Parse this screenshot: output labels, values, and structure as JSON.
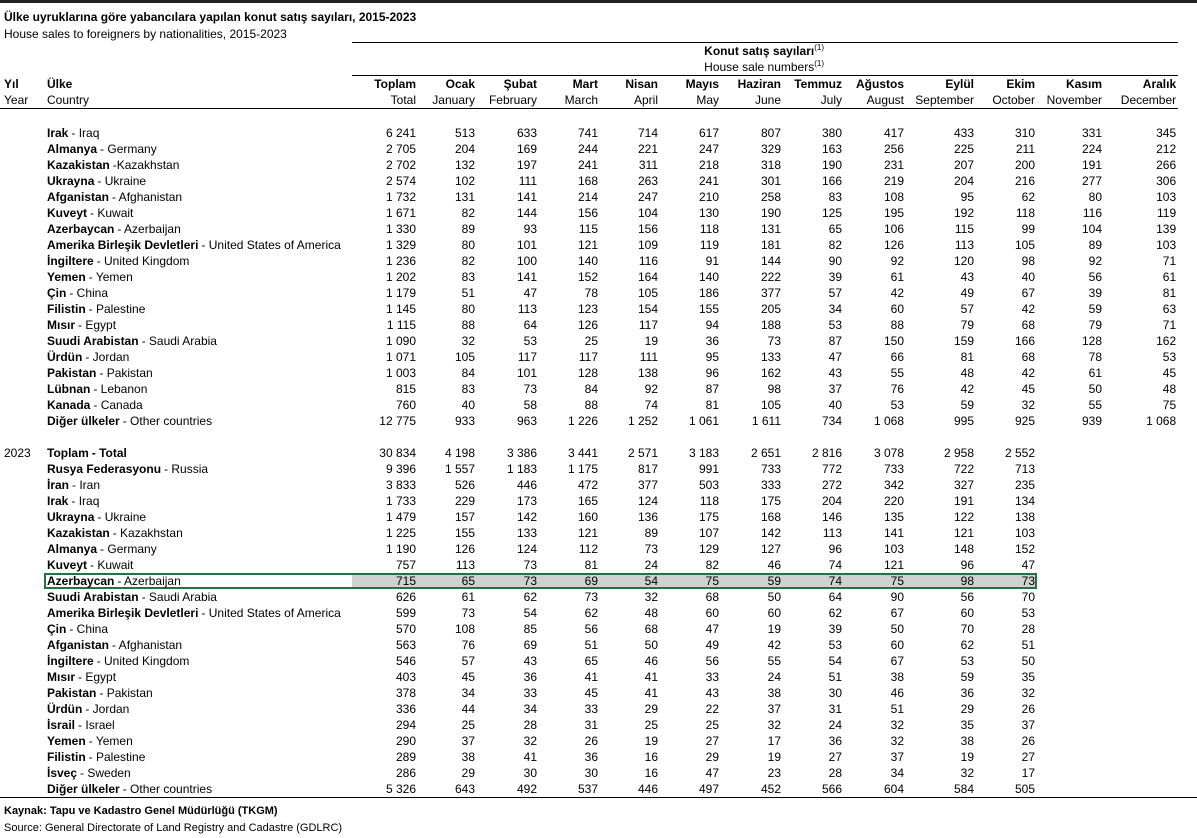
{
  "header": {
    "title": "Ülke uyruklarına göre yabancılara yapılan konut satış sayıları, 2015-2023",
    "subtitle": "House sales to foreigners by nationalities, 2015-2023"
  },
  "table": {
    "group_header": {
      "tr": "Konut satış sayıları",
      "en": "House sale numbers",
      "note": "(1)"
    },
    "columns": [
      {
        "tr": "Yıl",
        "en": "Year"
      },
      {
        "tr": "Ülke",
        "en": "Country"
      },
      {
        "tr": "Toplam",
        "en": "Total"
      },
      {
        "tr": "Ocak",
        "en": "January"
      },
      {
        "tr": "Şubat",
        "en": "February"
      },
      {
        "tr": "Mart",
        "en": "March"
      },
      {
        "tr": "Nisan",
        "en": "April"
      },
      {
        "tr": "Mayıs",
        "en": "May"
      },
      {
        "tr": "Haziran",
        "en": "June"
      },
      {
        "tr": "Temmuz",
        "en": "July"
      },
      {
        "tr": "Ağustos",
        "en": "August"
      },
      {
        "tr": "Eylül",
        "en": "September"
      },
      {
        "tr": "Ekim",
        "en": "October"
      },
      {
        "tr": "Kasım",
        "en": "November"
      },
      {
        "tr": "Aralık",
        "en": "December"
      }
    ],
    "sections": [
      {
        "total_bold": true,
        "rows": [
          {
            "tr": "Irak",
            "en": "- Iraq",
            "values": [
              "6 241",
              "513",
              "633",
              "741",
              "714",
              "617",
              "807",
              "380",
              "417",
              "433",
              "310",
              "331",
              "345"
            ]
          },
          {
            "tr": "Almanya",
            "en": "- Germany",
            "values": [
              "2 705",
              "204",
              "169",
              "244",
              "221",
              "247",
              "329",
              "163",
              "256",
              "225",
              "211",
              "224",
              "212"
            ]
          },
          {
            "tr": "Kazakistan",
            "en": "-Kazakhstan",
            "values": [
              "2 702",
              "132",
              "197",
              "241",
              "311",
              "218",
              "318",
              "190",
              "231",
              "207",
              "200",
              "191",
              "266"
            ]
          },
          {
            "tr": "Ukrayna",
            "en": "- Ukraine",
            "values": [
              "2 574",
              "102",
              "111",
              "168",
              "263",
              "241",
              "301",
              "166",
              "219",
              "204",
              "216",
              "277",
              "306"
            ]
          },
          {
            "tr": "Afganistan",
            "en": "- Afghanistan",
            "values": [
              "1 732",
              "131",
              "141",
              "214",
              "247",
              "210",
              "258",
              "83",
              "108",
              "95",
              "62",
              "80",
              "103"
            ]
          },
          {
            "tr": "Kuveyt",
            "en": "- Kuwait",
            "values": [
              "1 671",
              "82",
              "144",
              "156",
              "104",
              "130",
              "190",
              "125",
              "195",
              "192",
              "118",
              "116",
              "119"
            ]
          },
          {
            "tr": "Azerbaycan",
            "en": "- Azerbaijan",
            "values": [
              "1 330",
              "89",
              "93",
              "115",
              "156",
              "118",
              "131",
              "65",
              "106",
              "115",
              "99",
              "104",
              "139"
            ]
          },
          {
            "tr": "Amerika Birleşik Devletleri",
            "en": "- United States of America",
            "values": [
              "1 329",
              "80",
              "101",
              "121",
              "109",
              "119",
              "181",
              "82",
              "126",
              "113",
              "105",
              "89",
              "103"
            ]
          },
          {
            "tr": "İngiltere",
            "en": "- United Kingdom",
            "values": [
              "1 236",
              "82",
              "100",
              "140",
              "116",
              "91",
              "144",
              "90",
              "92",
              "120",
              "98",
              "92",
              "71"
            ]
          },
          {
            "tr": "Yemen",
            "en": "- Yemen",
            "values": [
              "1 202",
              "83",
              "141",
              "152",
              "164",
              "140",
              "222",
              "39",
              "61",
              "43",
              "40",
              "56",
              "61"
            ]
          },
          {
            "tr": "Çin",
            "en": "- China",
            "values": [
              "1 179",
              "51",
              "47",
              "78",
              "105",
              "186",
              "377",
              "57",
              "42",
              "49",
              "67",
              "39",
              "81"
            ]
          },
          {
            "tr": "Filistin",
            "en": "- Palestine",
            "values": [
              "1 145",
              "80",
              "113",
              "123",
              "154",
              "155",
              "205",
              "34",
              "60",
              "57",
              "42",
              "59",
              "63"
            ]
          },
          {
            "tr": "Mısır",
            "en": "- Egypt",
            "values": [
              "1 115",
              "88",
              "64",
              "126",
              "117",
              "94",
              "188",
              "53",
              "88",
              "79",
              "68",
              "79",
              "71"
            ]
          },
          {
            "tr": "Suudi Arabistan",
            "en": "- Saudi Arabia",
            "values": [
              "1 090",
              "32",
              "53",
              "25",
              "19",
              "36",
              "73",
              "87",
              "150",
              "159",
              "166",
              "128",
              "162"
            ]
          },
          {
            "tr": "Ürdün",
            "en": "- Jordan",
            "values": [
              "1 071",
              "105",
              "117",
              "117",
              "111",
              "95",
              "133",
              "47",
              "66",
              "81",
              "68",
              "78",
              "53"
            ]
          },
          {
            "tr": "Pakistan",
            "en": "- Pakistan",
            "values": [
              "1 003",
              "84",
              "101",
              "128",
              "138",
              "96",
              "162",
              "43",
              "55",
              "48",
              "42",
              "61",
              "45"
            ]
          },
          {
            "tr": "Lübnan",
            "en": "- Lebanon",
            "values": [
              "815",
              "83",
              "73",
              "84",
              "92",
              "87",
              "98",
              "37",
              "76",
              "42",
              "45",
              "50",
              "48"
            ]
          },
          {
            "tr": "Kanada",
            "en": "- Canada",
            "values": [
              "760",
              "40",
              "58",
              "88",
              "74",
              "81",
              "105",
              "40",
              "53",
              "59",
              "32",
              "55",
              "75"
            ]
          },
          {
            "tr": "Diğer ülkeler",
            "en": "- Other countries",
            "values": [
              "12 775",
              "933",
              "963",
              "1 226",
              "1 252",
              "1 061",
              "1 611",
              "734",
              "1 068",
              "995",
              "925",
              "939",
              "1 068"
            ]
          }
        ]
      },
      {
        "year": "2023",
        "rows": [
          {
            "tr": "Toplam",
            "en": "- Total",
            "total_row": true,
            "values": [
              "30 834",
              "4 198",
              "3 386",
              "3 441",
              "2 571",
              "3 183",
              "2 651",
              "2 816",
              "3 078",
              "2 958",
              "2 552"
            ]
          },
          {
            "tr": "Rusya Federasyonu",
            "en": "- Russia",
            "values": [
              "9 396",
              "1 557",
              "1 183",
              "1 175",
              "817",
              "991",
              "733",
              "772",
              "733",
              "722",
              "713"
            ]
          },
          {
            "tr": "İran",
            "en": "- Iran",
            "values": [
              "3 833",
              "526",
              "446",
              "472",
              "377",
              "503",
              "333",
              "272",
              "342",
              "327",
              "235"
            ]
          },
          {
            "tr": "Irak",
            "en": "- Iraq",
            "values": [
              "1 733",
              "229",
              "173",
              "165",
              "124",
              "118",
              "175",
              "204",
              "220",
              "191",
              "134"
            ]
          },
          {
            "tr": "Ukrayna",
            "en": "- Ukraine",
            "values": [
              "1 479",
              "157",
              "142",
              "160",
              "136",
              "175",
              "168",
              "146",
              "135",
              "122",
              "138"
            ]
          },
          {
            "tr": "Kazakistan",
            "en": "- Kazakhstan",
            "values": [
              "1 225",
              "155",
              "133",
              "121",
              "89",
              "107",
              "142",
              "113",
              "141",
              "121",
              "103"
            ]
          },
          {
            "tr": "Almanya",
            "en": "- Germany",
            "values": [
              "1 190",
              "126",
              "124",
              "112",
              "73",
              "129",
              "127",
              "96",
              "103",
              "148",
              "152"
            ]
          },
          {
            "tr": "Kuveyt",
            "en": "- Kuwait",
            "values": [
              "757",
              "113",
              "73",
              "81",
              "24",
              "82",
              "46",
              "74",
              "121",
              "96",
              "47"
            ]
          },
          {
            "tr": "Azerbaycan",
            "en": "- Azerbaijan",
            "selected": true,
            "values": [
              "715",
              "65",
              "73",
              "69",
              "54",
              "75",
              "59",
              "74",
              "75",
              "98",
              "73"
            ]
          },
          {
            "tr": "Suudi Arabistan",
            "en": "- Saudi Arabia",
            "values": [
              "626",
              "61",
              "62",
              "73",
              "32",
              "68",
              "50",
              "64",
              "90",
              "56",
              "70"
            ]
          },
          {
            "tr": "Amerika Birleşik Devletleri",
            "en": "- United States of America",
            "values": [
              "599",
              "73",
              "54",
              "62",
              "48",
              "60",
              "60",
              "62",
              "67",
              "60",
              "53"
            ]
          },
          {
            "tr": "Çin",
            "en": "- China",
            "values": [
              "570",
              "108",
              "85",
              "56",
              "68",
              "47",
              "19",
              "39",
              "50",
              "70",
              "28"
            ]
          },
          {
            "tr": "Afganistan",
            "en": "- Afghanistan",
            "values": [
              "563",
              "76",
              "69",
              "51",
              "50",
              "49",
              "42",
              "53",
              "60",
              "62",
              "51"
            ]
          },
          {
            "tr": "İngiltere",
            "en": "- United Kingdom",
            "values": [
              "546",
              "57",
              "43",
              "65",
              "46",
              "56",
              "55",
              "54",
              "67",
              "53",
              "50"
            ]
          },
          {
            "tr": "Mısır",
            "en": "- Egypt",
            "values": [
              "403",
              "45",
              "36",
              "41",
              "41",
              "33",
              "24",
              "51",
              "38",
              "59",
              "35"
            ]
          },
          {
            "tr": "Pakistan",
            "en": "- Pakistan",
            "values": [
              "378",
              "34",
              "33",
              "45",
              "41",
              "43",
              "38",
              "30",
              "46",
              "36",
              "32"
            ]
          },
          {
            "tr": "Ürdün",
            "en": "- Jordan",
            "values": [
              "336",
              "44",
              "34",
              "33",
              "29",
              "22",
              "37",
              "31",
              "51",
              "29",
              "26"
            ]
          },
          {
            "tr": "İsrail",
            "en": "- Israel",
            "values": [
              "294",
              "25",
              "28",
              "31",
              "25",
              "25",
              "32",
              "24",
              "32",
              "35",
              "37"
            ]
          },
          {
            "tr": "Yemen",
            "en": "- Yemen",
            "values": [
              "290",
              "37",
              "32",
              "26",
              "19",
              "27",
              "17",
              "36",
              "32",
              "38",
              "26"
            ]
          },
          {
            "tr": "Filistin",
            "en": "- Palestine",
            "values": [
              "289",
              "38",
              "41",
              "36",
              "16",
              "29",
              "19",
              "27",
              "37",
              "19",
              "27"
            ]
          },
          {
            "tr": "İsveç",
            "en": "- Sweden",
            "values": [
              "286",
              "29",
              "30",
              "30",
              "16",
              "47",
              "23",
              "28",
              "34",
              "32",
              "17"
            ]
          },
          {
            "tr": "Diğer ülkeler",
            "en": "- Other countries",
            "values": [
              "5 326",
              "643",
              "492",
              "537",
              "446",
              "497",
              "452",
              "566",
              "604",
              "584",
              "505"
            ]
          }
        ]
      }
    ]
  },
  "footer": {
    "source_tr": "Kaynak: Tapu ve Kadastro Genel Müdürlüğü (TKGM)",
    "source_en": "Source: General Directorate of Land Registry and Cadastre (GDLRC)"
  }
}
